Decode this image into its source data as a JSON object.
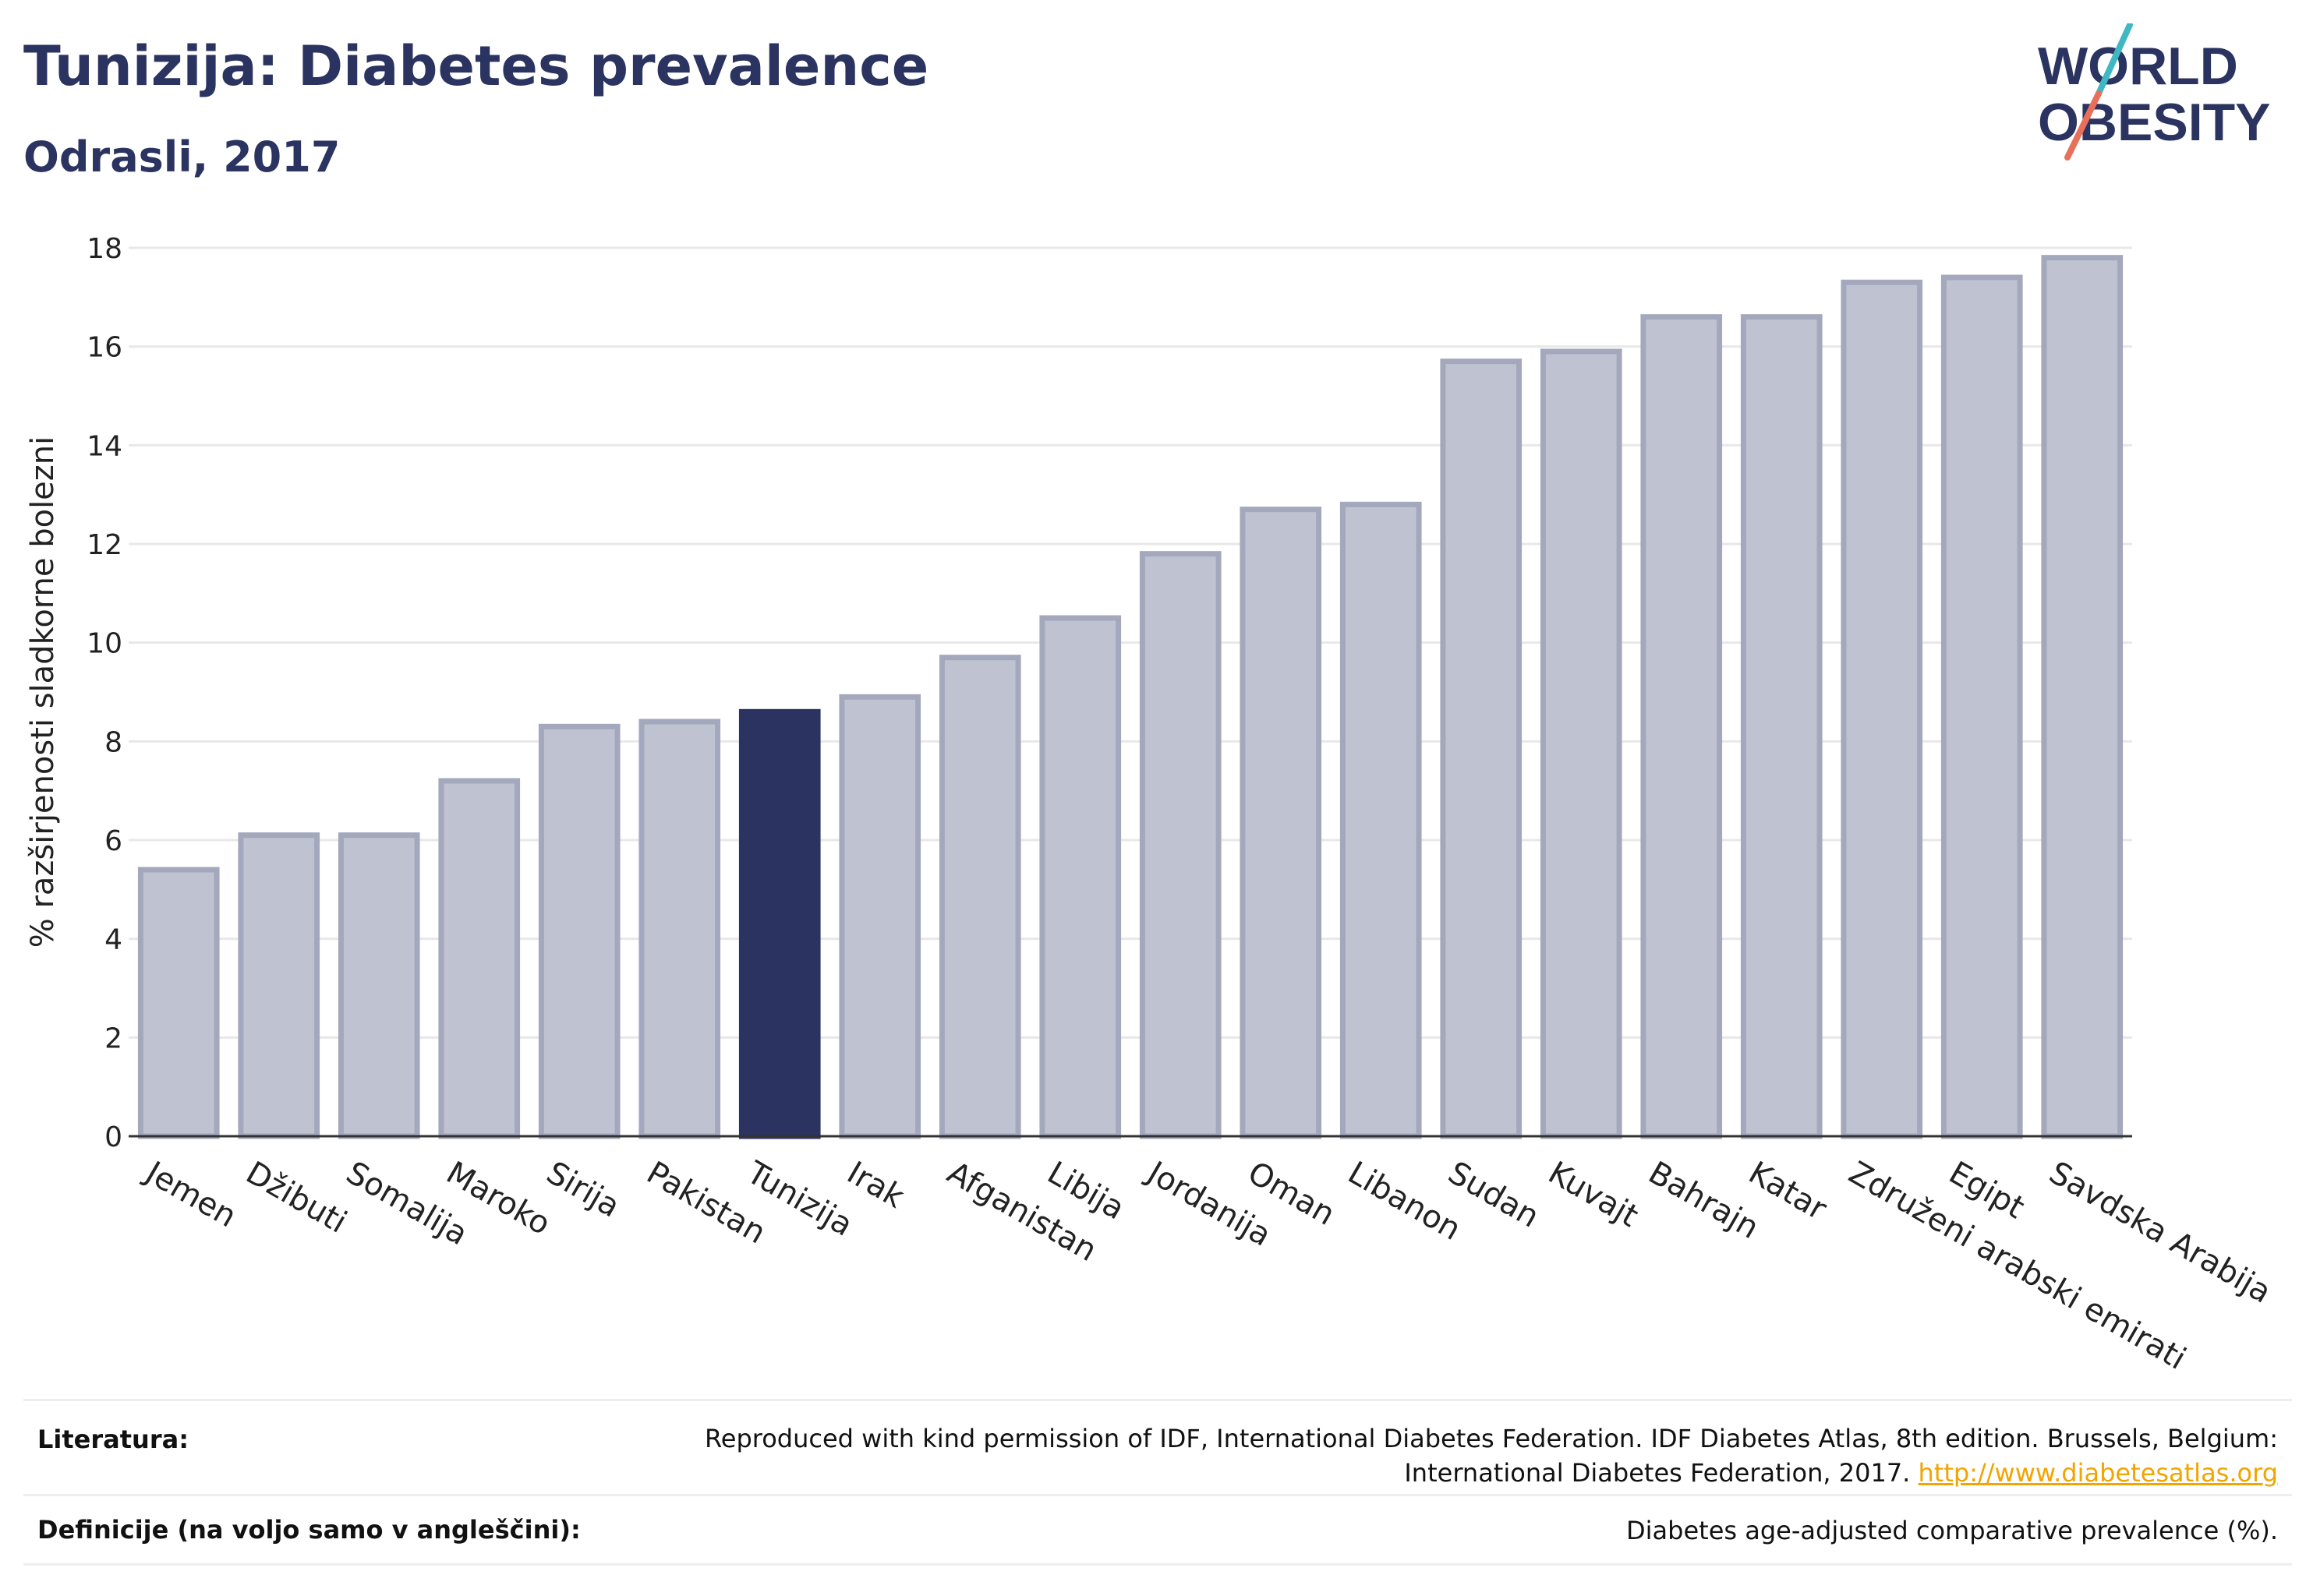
{
  "header": {
    "title": "Tunizija: Diabetes prevalence",
    "subtitle": "Odrasli, 2017"
  },
  "logo": {
    "line1": "WORLD",
    "line2": "OBESITY",
    "text_color": "#2b3461",
    "slash_color_top": "#3fb8c4",
    "slash_color_bottom": "#e8705a"
  },
  "chart_data": {
    "type": "bar",
    "title": "Tunizija: Diabetes prevalence",
    "subtitle": "Odrasli, 2017",
    "ylabel": "% razširjenosti sladkorne bolezni",
    "xlabel": "",
    "ylim": [
      0,
      18
    ],
    "yticks": [
      0,
      2,
      4,
      6,
      8,
      10,
      12,
      14,
      16,
      18
    ],
    "grid": true,
    "highlight": "Tunizija",
    "colors": {
      "bar": "#bfc2d0",
      "bar_border": "#a4a8bc",
      "highlight": "#2b3461"
    },
    "categories": [
      "Jemen",
      "Džibuti",
      "Somalija",
      "Maroko",
      "Sirija",
      "Pakistan",
      "Tunizija",
      "Irak",
      "Afganistan",
      "Libija",
      "Jordanija",
      "Oman",
      "Libanon",
      "Sudan",
      "Kuvajt",
      "Bahrajn",
      "Katar",
      "Združeni arabski emirati",
      "Egipt",
      "Savdska Arabija"
    ],
    "values": [
      5.4,
      6.1,
      6.1,
      7.2,
      8.3,
      8.4,
      8.6,
      8.9,
      9.7,
      10.5,
      11.8,
      12.7,
      12.8,
      15.7,
      15.9,
      16.6,
      16.6,
      17.3,
      17.4,
      17.8
    ]
  },
  "footer": {
    "references_label": "Literatura:",
    "references_text_1": "Reproduced with kind permission of IDF, International Diabetes Federation. IDF Diabetes Atlas, 8th edition. Brussels, Belgium:",
    "references_text_2": "International Diabetes Federation, 2017.",
    "references_link": "http://www.diabetesatlas.org",
    "definitions_label": "Definicije (na voljo samo v angleščini):",
    "definitions_text": "Diabetes age-adjusted comparative prevalence (%)."
  }
}
